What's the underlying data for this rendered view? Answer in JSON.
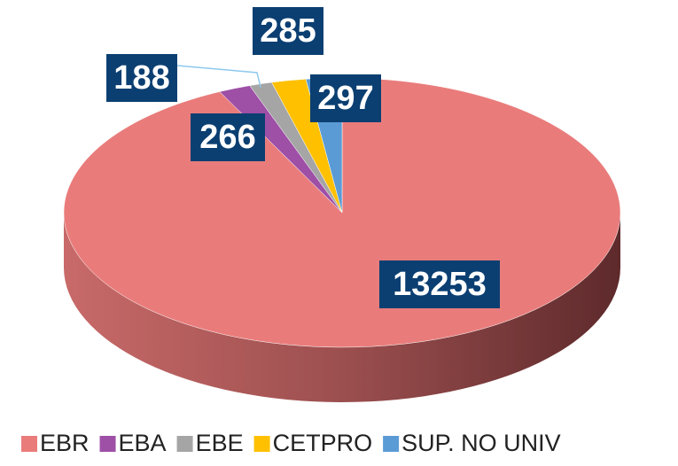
{
  "chart_data": {
    "type": "pie3d",
    "categories": [
      "EBR",
      "EBA",
      "EBE",
      "CETPRO",
      "SUP. NO UNIV"
    ],
    "values": [
      13253,
      266,
      188,
      285,
      297
    ],
    "colors": [
      "#e97c7b",
      "#9e4fa6",
      "#a5a5a5",
      "#ffc000",
      "#5b9bd5"
    ],
    "legend": "bottom"
  }
}
